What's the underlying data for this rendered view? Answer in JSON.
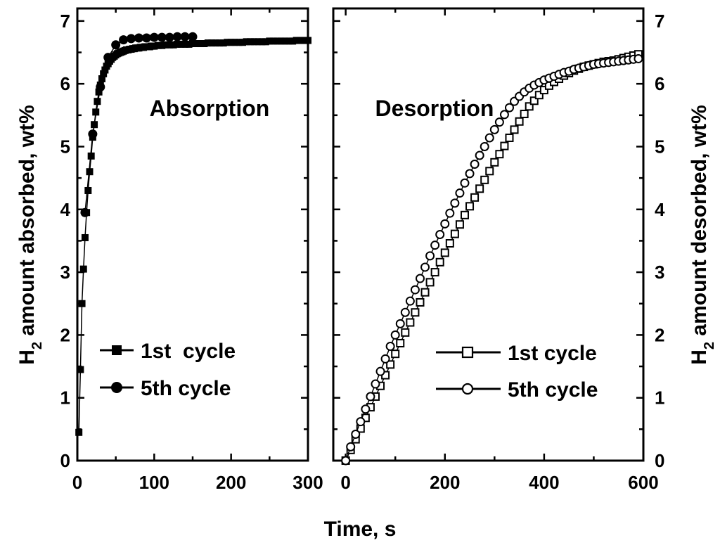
{
  "chart_data": [
    {
      "type": "scatter",
      "title": "Absorption",
      "xlabel": "",
      "ylabel": "H2 amount absorbed, wt%",
      "ylabel_main": "H",
      "ylabel_sub": "2",
      "ylabel_rest": " amount absorbed, wt%",
      "xlim": [
        0,
        300
      ],
      "ylim": [
        0,
        7.2
      ],
      "xticks": [
        0,
        100,
        200,
        300
      ],
      "yticks": [
        0,
        1,
        2,
        3,
        4,
        5,
        6,
        7
      ],
      "legend_position": "lower-right",
      "grid": false,
      "series": [
        {
          "name": "1st  cycle",
          "marker": "square-filled",
          "x": [
            2,
            4,
            6,
            8,
            10,
            12,
            14,
            16,
            18,
            20,
            22,
            24,
            26,
            28,
            30,
            32,
            34,
            36,
            38,
            40,
            42,
            44,
            46,
            48,
            50,
            52,
            54,
            56,
            58,
            60,
            62,
            64,
            66,
            68,
            70,
            72,
            74,
            76,
            78,
            80,
            82,
            84,
            86,
            88,
            90,
            92,
            94,
            96,
            98,
            100,
            105,
            110,
            115,
            120,
            125,
            130,
            135,
            140,
            145,
            150,
            155,
            160,
            165,
            170,
            175,
            180,
            185,
            190,
            195,
            200,
            205,
            210,
            215,
            220,
            225,
            230,
            235,
            240,
            245,
            250,
            255,
            260,
            265,
            270,
            275,
            280,
            285,
            290,
            295,
            300
          ],
          "y": [
            0.45,
            1.45,
            2.5,
            3.05,
            3.55,
            3.95,
            4.3,
            4.6,
            4.85,
            5.15,
            5.35,
            5.55,
            5.72,
            5.87,
            5.98,
            6.08,
            6.16,
            6.22,
            6.28,
            6.32,
            6.36,
            6.39,
            6.42,
            6.44,
            6.46,
            6.48,
            6.49,
            6.5,
            6.51,
            6.52,
            6.53,
            6.54,
            6.54,
            6.55,
            6.55,
            6.56,
            6.56,
            6.57,
            6.57,
            6.57,
            6.58,
            6.58,
            6.58,
            6.59,
            6.59,
            6.59,
            6.59,
            6.6,
            6.6,
            6.6,
            6.61,
            6.61,
            6.62,
            6.62,
            6.62,
            6.63,
            6.63,
            6.63,
            6.63,
            6.64,
            6.64,
            6.64,
            6.64,
            6.65,
            6.65,
            6.65,
            6.65,
            6.65,
            6.66,
            6.66,
            6.66,
            6.66,
            6.66,
            6.67,
            6.67,
            6.67,
            6.67,
            6.67,
            6.67,
            6.68,
            6.68,
            6.68,
            6.68,
            6.68,
            6.68,
            6.68,
            6.69,
            6.69,
            6.69,
            6.69
          ]
        },
        {
          "name": "5th cycle",
          "marker": "circle-filled",
          "x": [
            10,
            20,
            30,
            40,
            50,
            60,
            70,
            80,
            90,
            100,
            110,
            120,
            130,
            140,
            150
          ],
          "y": [
            3.95,
            5.2,
            5.95,
            6.42,
            6.62,
            6.7,
            6.72,
            6.73,
            6.73,
            6.74,
            6.74,
            6.74,
            6.75,
            6.75,
            6.75
          ]
        }
      ]
    },
    {
      "type": "scatter",
      "title": "Desorption",
      "xlabel": "Time, s",
      "ylabel": "H2 amount desorbed, wt%",
      "ylabel_main": "H",
      "ylabel_sub": "2",
      "ylabel_rest": " amount desorbed, wt%",
      "xlim": [
        -25,
        600
      ],
      "ylim": [
        0,
        7.2
      ],
      "xticks": [
        0,
        200,
        400,
        600
      ],
      "yticks": [
        0,
        1,
        2,
        3,
        4,
        5,
        6,
        7
      ],
      "legend_position": "lower-right",
      "grid": false,
      "series": [
        {
          "name": "1st cycle",
          "marker": "square-open",
          "x": [
            0,
            10,
            20,
            30,
            40,
            50,
            60,
            70,
            80,
            90,
            100,
            110,
            120,
            130,
            140,
            150,
            160,
            170,
            180,
            190,
            200,
            210,
            220,
            230,
            240,
            250,
            260,
            270,
            280,
            290,
            300,
            310,
            320,
            330,
            340,
            350,
            360,
            370,
            380,
            390,
            400,
            410,
            420,
            430,
            440,
            450,
            460,
            470,
            480,
            490,
            500,
            510,
            520,
            530,
            540,
            550,
            560,
            570,
            580,
            590
          ],
          "y": [
            0.0,
            0.17,
            0.34,
            0.51,
            0.68,
            0.85,
            1.02,
            1.19,
            1.36,
            1.53,
            1.7,
            1.87,
            2.04,
            2.2,
            2.36,
            2.52,
            2.68,
            2.84,
            3.0,
            3.16,
            3.31,
            3.46,
            3.61,
            3.76,
            3.91,
            4.05,
            4.19,
            4.33,
            4.47,
            4.61,
            4.75,
            4.88,
            5.01,
            5.14,
            5.27,
            5.4,
            5.52,
            5.64,
            5.73,
            5.82,
            5.9,
            5.97,
            6.03,
            6.08,
            6.13,
            6.17,
            6.21,
            6.24,
            6.27,
            6.29,
            6.31,
            6.33,
            6.35,
            6.36,
            6.37,
            6.39,
            6.41,
            6.43,
            6.45,
            6.47
          ]
        },
        {
          "name": "5th cycle",
          "marker": "circle-open",
          "x": [
            0,
            10,
            20,
            30,
            40,
            50,
            60,
            70,
            80,
            90,
            100,
            110,
            120,
            130,
            140,
            150,
            160,
            170,
            180,
            190,
            200,
            210,
            220,
            230,
            240,
            250,
            260,
            270,
            280,
            290,
            300,
            310,
            320,
            330,
            340,
            350,
            360,
            370,
            380,
            390,
            400,
            410,
            420,
            430,
            440,
            450,
            460,
            470,
            480,
            490,
            500,
            510,
            520,
            530,
            540,
            550,
            560,
            570,
            580,
            590
          ],
          "y": [
            0.0,
            0.22,
            0.42,
            0.62,
            0.82,
            1.02,
            1.22,
            1.42,
            1.62,
            1.82,
            2.0,
            2.18,
            2.36,
            2.54,
            2.72,
            2.9,
            3.08,
            3.26,
            3.43,
            3.6,
            3.77,
            3.94,
            4.1,
            4.26,
            4.42,
            4.57,
            4.72,
            4.86,
            5.0,
            5.14,
            5.27,
            5.39,
            5.51,
            5.62,
            5.72,
            5.8,
            5.87,
            5.93,
            5.98,
            6.02,
            6.06,
            6.09,
            6.12,
            6.15,
            6.18,
            6.2,
            6.23,
            6.25,
            6.27,
            6.29,
            6.31,
            6.32,
            6.33,
            6.34,
            6.35,
            6.36,
            6.37,
            6.38,
            6.39,
            6.4
          ]
        }
      ]
    }
  ]
}
